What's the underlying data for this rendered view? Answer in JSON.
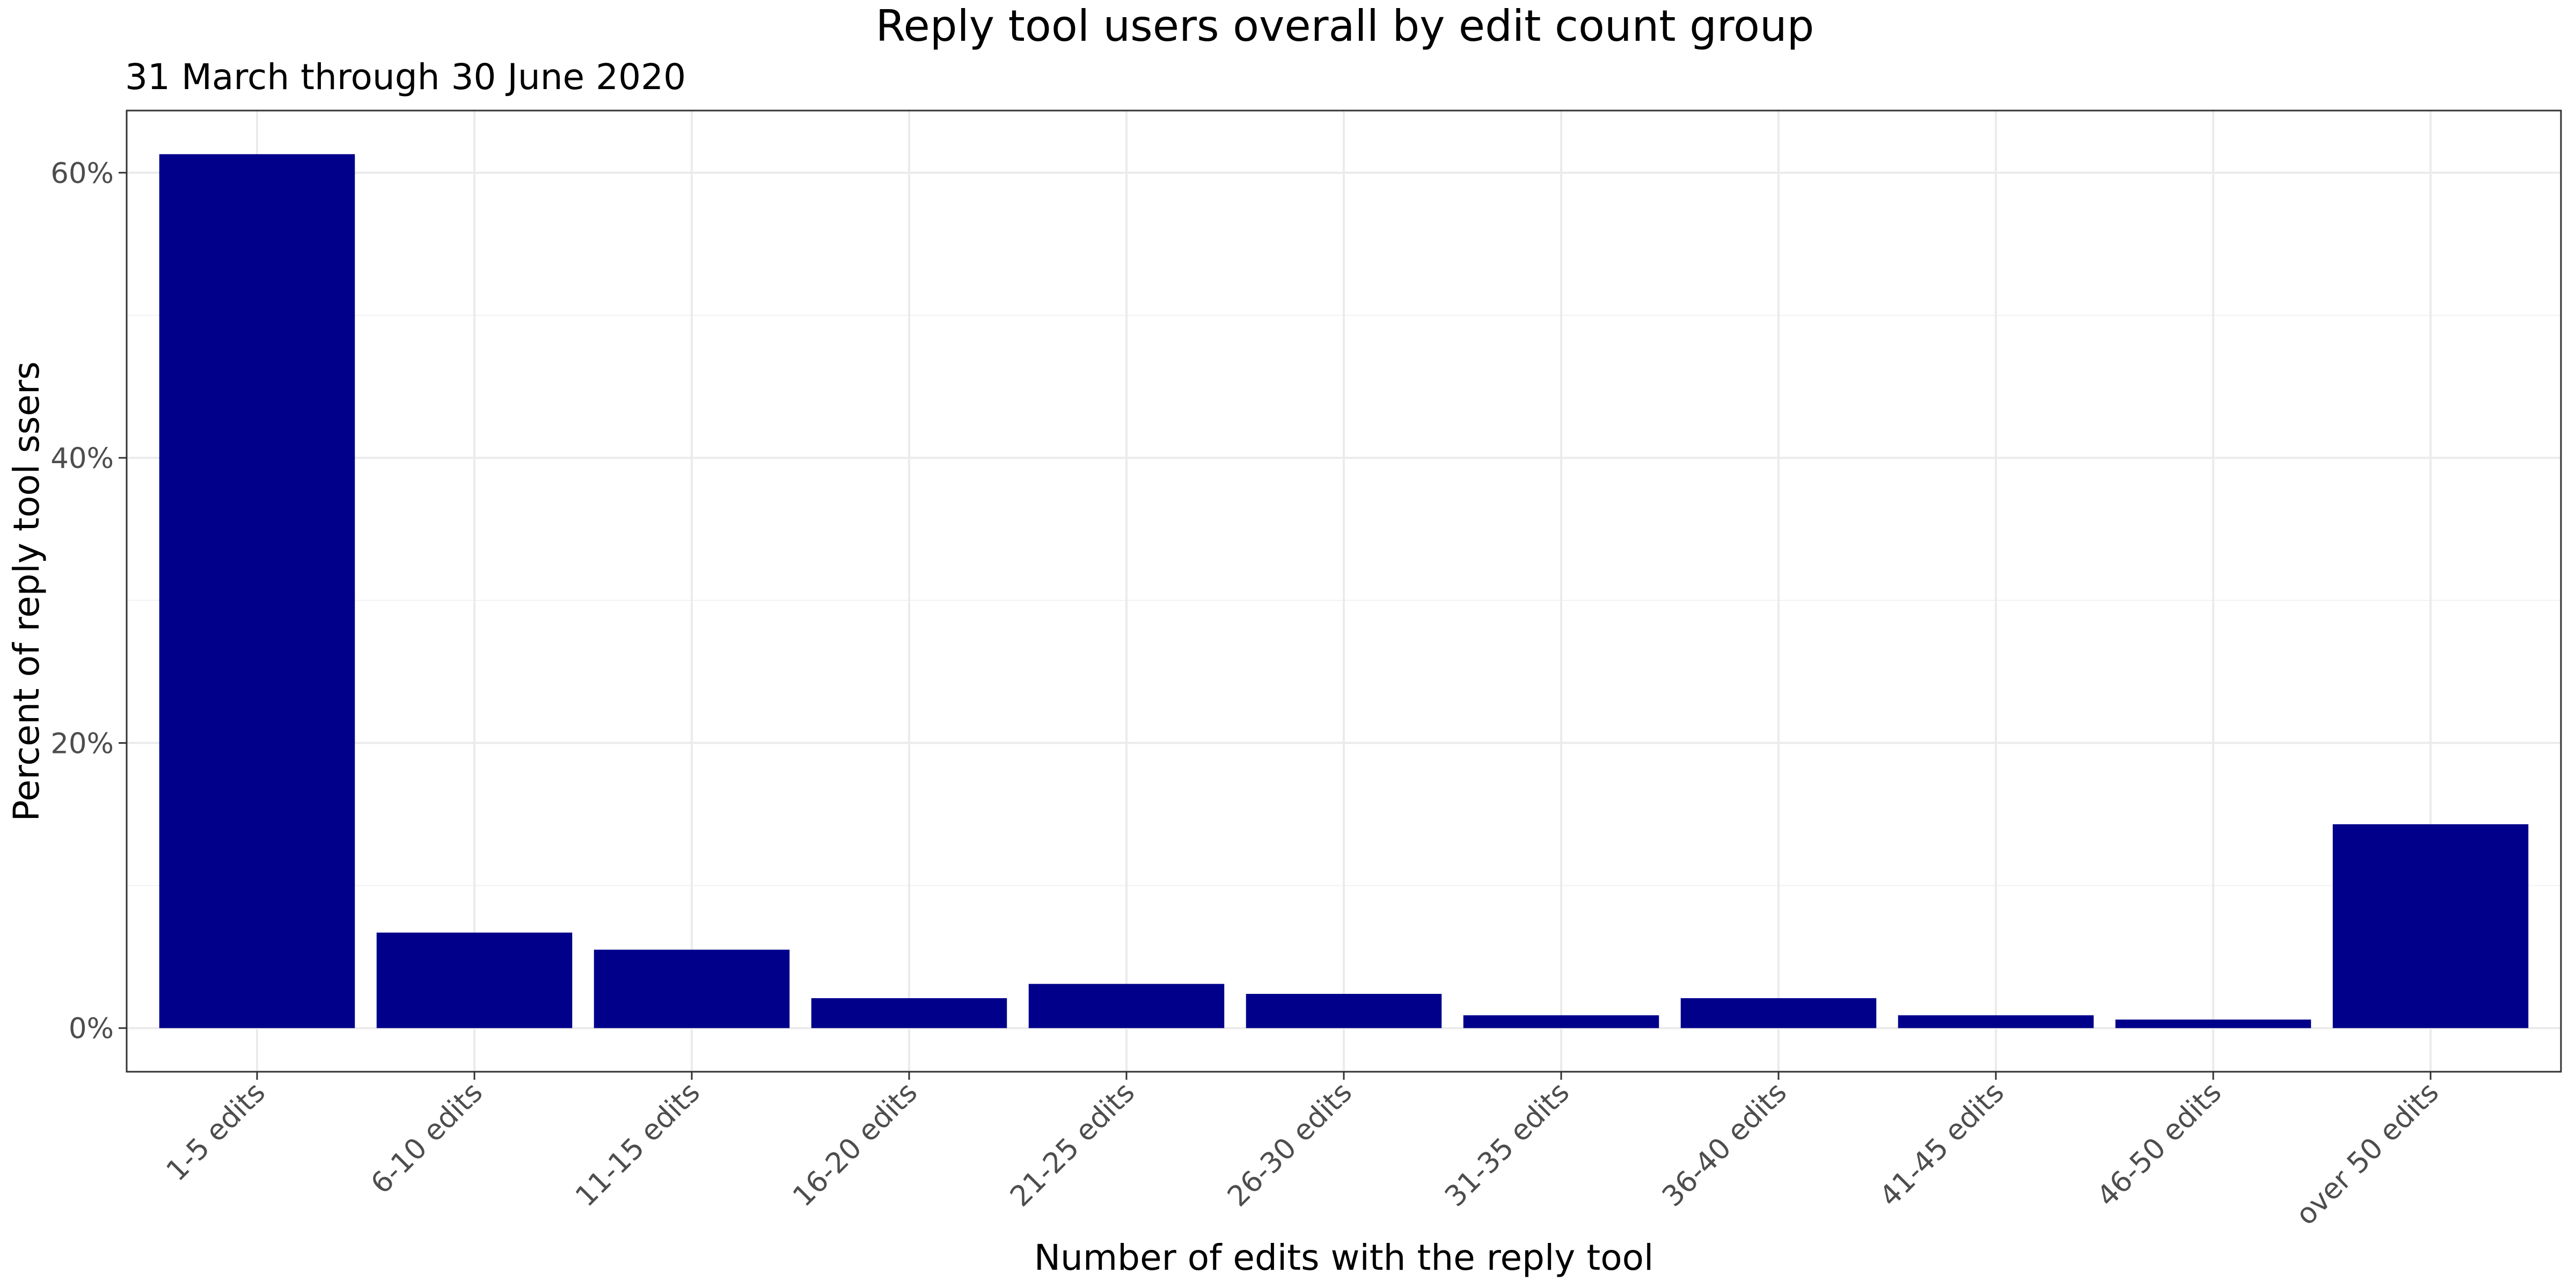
{
  "chart_data": {
    "type": "bar",
    "title": "Reply tool users overall by edit count group",
    "subtitle": "31 March through 30 June 2020",
    "xlabel": "Number of edits with the reply tool",
    "ylabel": "Percent of reply tool ssers",
    "categories": [
      "1-5 edits",
      "6-10 edits",
      "11-15 edits",
      "16-20 edits",
      "21-25 edits",
      "26-30 edits",
      "31-35 edits",
      "36-40 edits",
      "41-45 edits",
      "46-50 edits",
      "over 50 edits"
    ],
    "values": [
      61.3,
      6.7,
      5.5,
      2.1,
      3.1,
      2.4,
      0.9,
      2.1,
      0.9,
      0.6,
      14.3
    ],
    "unit": "%",
    "ylim": [
      -3.06,
      64.36
    ],
    "yticks": [
      0,
      20,
      40,
      60
    ],
    "ytick_labels": [
      "0%",
      "20%",
      "40%",
      "60%"
    ],
    "bar_color": "#00008B",
    "grid": true,
    "legend": "none"
  }
}
